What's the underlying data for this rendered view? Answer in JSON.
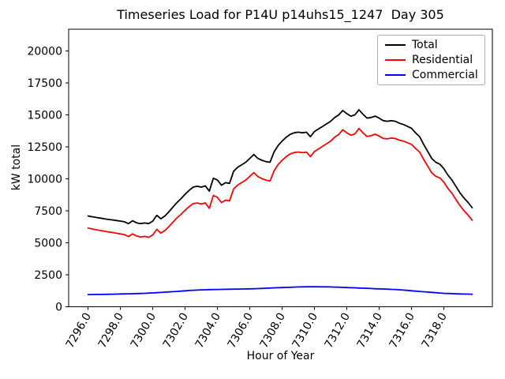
{
  "figure": {
    "background": "#ffffff"
  },
  "chart_data": {
    "type": "line",
    "title": "Timeseries Load for P14U p14uhs15_1247  Day 305",
    "xlabel": "Hour of Year",
    "ylabel": "kW total",
    "xlim": [
      7294.8,
      7321.0
    ],
    "ylim": [
      0,
      21700
    ],
    "grid": false,
    "legend_position": "upper right",
    "xticks": [
      7296.0,
      7298.0,
      7300.0,
      7302.0,
      7304.0,
      7306.0,
      7308.0,
      7310.0,
      7312.0,
      7314.0,
      7316.0,
      7318.0
    ],
    "yticks": [
      0,
      2500,
      5000,
      7500,
      10000,
      12500,
      15000,
      17500,
      20000
    ],
    "x": [
      7296.0,
      7296.25,
      7296.5,
      7296.75,
      7297.0,
      7297.25,
      7297.5,
      7297.75,
      7298.0,
      7298.25,
      7298.5,
      7298.75,
      7299.0,
      7299.25,
      7299.5,
      7299.75,
      7300.0,
      7300.25,
      7300.5,
      7300.75,
      7301.0,
      7301.25,
      7301.5,
      7301.75,
      7302.0,
      7302.25,
      7302.5,
      7302.75,
      7303.0,
      7303.25,
      7303.5,
      7303.75,
      7304.0,
      7304.25,
      7304.5,
      7304.75,
      7305.0,
      7305.25,
      7305.5,
      7305.75,
      7306.0,
      7306.25,
      7306.5,
      7306.75,
      7307.0,
      7307.25,
      7307.5,
      7307.75,
      7308.0,
      7308.25,
      7308.5,
      7308.75,
      7309.0,
      7309.25,
      7309.5,
      7309.75,
      7310.0,
      7310.25,
      7310.5,
      7310.75,
      7311.0,
      7311.25,
      7311.5,
      7311.75,
      7312.0,
      7312.25,
      7312.5,
      7312.75,
      7313.0,
      7313.25,
      7313.5,
      7313.75,
      7314.0,
      7314.25,
      7314.5,
      7314.75,
      7315.0,
      7315.25,
      7315.5,
      7315.75,
      7316.0,
      7316.25,
      7316.5,
      7316.75,
      7317.0,
      7317.25,
      7317.5,
      7317.75,
      7318.0,
      7318.25,
      7318.5,
      7318.75,
      7319.0,
      7319.25,
      7319.5,
      7319.75
    ],
    "series": [
      {
        "name": "Total",
        "color": "#000000",
        "values": [
          7100,
          7040,
          6980,
          6930,
          6880,
          6830,
          6790,
          6740,
          6700,
          6640,
          6500,
          6720,
          6560,
          6500,
          6550,
          6500,
          6700,
          7150,
          6880,
          7100,
          7430,
          7800,
          8150,
          8450,
          8800,
          9100,
          9350,
          9420,
          9350,
          9450,
          9040,
          10050,
          9900,
          9500,
          9700,
          9650,
          10600,
          10900,
          11100,
          11300,
          11600,
          11900,
          11600,
          11450,
          11350,
          11300,
          12100,
          12600,
          12950,
          13250,
          13480,
          13600,
          13650,
          13600,
          13650,
          13300,
          13700,
          13900,
          14100,
          14300,
          14500,
          14800,
          15000,
          15350,
          15100,
          14900,
          15000,
          15400,
          15050,
          14750,
          14800,
          14900,
          14750,
          14550,
          14500,
          14550,
          14500,
          14350,
          14250,
          14100,
          13950,
          13600,
          13300,
          12700,
          12150,
          11600,
          11300,
          11150,
          10800,
          10300,
          9900,
          9400,
          8900,
          8500,
          8150,
          7750
        ]
      },
      {
        "name": "Residential",
        "color": "#ff0000",
        "values": [
          6150,
          6085,
          6020,
          5965,
          5910,
          5855,
          5810,
          5750,
          5700,
          5635,
          5490,
          5700,
          5530,
          5460,
          5500,
          5435,
          5620,
          6050,
          5760,
          5960,
          6270,
          6620,
          6950,
          7225,
          7550,
          7830,
          8060,
          8115,
          8030,
          8120,
          7700,
          8705,
          8550,
          8140,
          8335,
          8280,
          9220,
          9515,
          9710,
          9905,
          10200,
          10490,
          10180,
          10015,
          9900,
          9835,
          10620,
          11110,
          11450,
          11735,
          11955,
          12060,
          12100,
          12045,
          12090,
          11740,
          12140,
          12340,
          12545,
          12745,
          12950,
          13260,
          13470,
          13835,
          13600,
          13410,
          13520,
          13935,
          13600,
          13310,
          13375,
          13490,
          13350,
          13160,
          13125,
          13190,
          13150,
          13025,
          12950,
          12825,
          12700,
          12375,
          12100,
          11525,
          11000,
          10475,
          10200,
          10075,
          9750,
          9260,
          8870,
          8385,
          7900,
          7505,
          7160,
          6770
        ]
      },
      {
        "name": "Commercial",
        "color": "#0000ff",
        "values": [
          950,
          955,
          960,
          965,
          970,
          975,
          980,
          990,
          1000,
          1005,
          1010,
          1020,
          1030,
          1040,
          1050,
          1065,
          1080,
          1100,
          1120,
          1140,
          1160,
          1180,
          1200,
          1225,
          1250,
          1270,
          1290,
          1305,
          1320,
          1330,
          1340,
          1345,
          1350,
          1360,
          1365,
          1370,
          1380,
          1385,
          1390,
          1395,
          1400,
          1410,
          1420,
          1435,
          1450,
          1465,
          1480,
          1490,
          1500,
          1515,
          1525,
          1540,
          1550,
          1555,
          1560,
          1560,
          1560,
          1560,
          1555,
          1555,
          1550,
          1540,
          1530,
          1515,
          1500,
          1490,
          1480,
          1465,
          1450,
          1440,
          1425,
          1410,
          1400,
          1390,
          1375,
          1360,
          1350,
          1325,
          1300,
          1275,
          1250,
          1225,
          1200,
          1175,
          1150,
          1125,
          1100,
          1075,
          1050,
          1040,
          1030,
          1015,
          1000,
          995,
          990,
          980
        ]
      }
    ]
  }
}
